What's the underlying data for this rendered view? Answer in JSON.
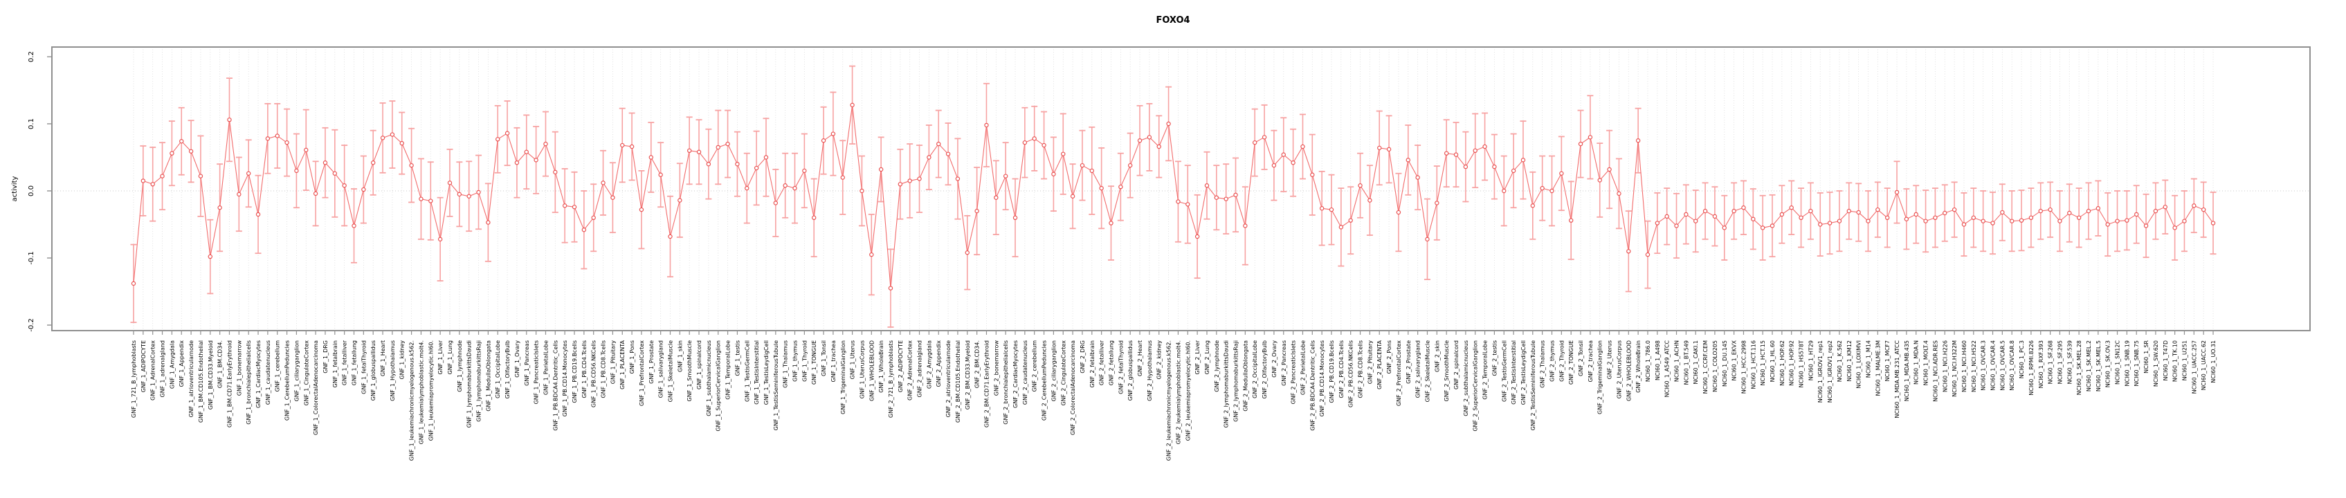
{
  "chart_data": {
    "type": "line",
    "title": "FOXO4",
    "xlabel": "",
    "ylabel": "activity",
    "ylim": [
      -0.2,
      0.2
    ],
    "yticks": [
      0.2,
      0.1,
      0.0,
      -0.1,
      -0.2
    ],
    "ytick_labels": [
      "0.2",
      "0.1",
      "0.0",
      "-0.1",
      "-0.2"
    ],
    "grid": "vertical dotted gridline at every category; dotted horizontal line at 0.0",
    "legend": "none",
    "marker": "open-circle",
    "error_bars": true,
    "categories": [
      "GNF_1_721_B_lymphoblasts",
      "GNF_1_ADIPOCYTE",
      "GNF_1_AdrenalCortex",
      "GNF_1_adrenalgland",
      "GNF_1_Amygdala",
      "GNF_1_Appendix",
      "GNF_1_atrioventricularnode",
      "GNF_1_BM.CD105.Endothelial",
      "GNF_1_BM.CD33.Myeloid",
      "GNF_1_BM.CD34.",
      "GNF_1_BM.CD71.EarlyErythroid",
      "GNF_1_bonemarrow",
      "GNF_1_bronchialepithelialcells",
      "GNF_1_CardiacMyocytes",
      "GNF_1_caudatenucleus",
      "GNF_1_cerebellum",
      "GNF_1_CerebellumPeduncles",
      "GNF_1_ciliaryganglion",
      "GNF_1_CingulateCortex",
      "GNF_1_ColorectalAdenocarcinoma",
      "GNF_1_DRG",
      "GNF_1_fetalbrain",
      "GNF_1_fetalliver",
      "GNF_1_fetallung",
      "GNF_1_fetalThyroid",
      "GNF_1_globuspallidus",
      "GNF_1_Heart",
      "GNF_1_Hypothalamus",
      "GNF_1_kidney",
      "GNF_1_leukemiachronicmyelogenous.k562.",
      "GNF_1_leukemialymphoblastic.molt4.",
      "GNF_1_leukemiapromyelocytic.hl60.",
      "GNF_1_Liver",
      "GNF_1_Lung",
      "GNF_1_lymphnode",
      "GNF_1_lymphomaburkittsDaudi",
      "GNF_1_lymphomaburkittsRaji",
      "GNF_1_MedullaOblongata",
      "GNF_1_OccipitalLobe",
      "GNF_1_OlfactoryBulb",
      "GNF_1_Ovary",
      "GNF_1_Pancreas",
      "GNF_1_PancreaticIslets",
      "GNF_1_ParietalLobe",
      "GNF_1_PB.BDCA4.Dentritic_Cells",
      "GNF_1_PB.CD14.Monocytes",
      "GNF_1_PB.CD19.Bcells",
      "GNF_1_PB.CD4.Tcells",
      "GNF_1_PB.CD56.NKCells",
      "GNF_1_PB.CD8.Tcells",
      "GNF_1_Pituitary",
      "GNF_1_PLACENTA",
      "GNF_1_Pons",
      "GNF_1_PrefrontalCortex",
      "GNF_1_Prostate",
      "GNF_1_salivarygland",
      "GNF_1_SkeletalMuscle",
      "GNF_1_skin",
      "GNF_1_SmoothMuscle",
      "GNF_1_spinalcord",
      "GNF_1_subthalamicnucleus",
      "GNF_1_SuperiorCervicalGanglion",
      "GNF_1_TemporalLobe",
      "GNF_1_testis",
      "GNF_1_TestisGermCell",
      "GNF_1_TestisInterstitial",
      "GNF_1_TestisLeydigCell",
      "GNF_1_TestisSeminiferousTubule",
      "GNF_1_Thalamus",
      "GNF_1_thymus",
      "GNF_1_Thyroid",
      "GNF_1_TONGUE",
      "GNF_1_Tonsil",
      "GNF_1_trachea",
      "GNF_1_TrigeminalGanglion",
      "GNF_1_Uterus",
      "GNF_1_UterusCorpus",
      "GNF_1_WHOLEBLOOD",
      "GNF_1_WholeBrain",
      "GNF_2_721_B_lymphoblasts",
      "GNF_2_ADIPOCYTE",
      "GNF_2_AdrenalCortex",
      "GNF_2_adrenalgland",
      "GNF_2_Amygdala",
      "GNF_2_Appendix",
      "GNF_2_atrioventricularnode",
      "GNF_2_BM.CD105.Endothelial",
      "GNF_2_BM.CD33.Myeloid",
      "GNF_2_BM.CD34.",
      "GNF_2_BM.CD71.EarlyErythroid",
      "GNF_2_bonemarrow",
      "GNF_2_bronchialepithelialcells",
      "GNF_2_CardiacMyocytes",
      "GNF_2_caudatenucleus",
      "GNF_2_cerebellum",
      "GNF_2_CerebellumPeduncles",
      "GNF_2_ciliaryganglion",
      "GNF_2_CingulateCortex",
      "GNF_2_ColorectalAdenocarcinoma",
      "GNF_2_DRG",
      "GNF_2_fetalbrain",
      "GNF_2_fetalliver",
      "GNF_2_fetallung",
      "GNF_2_fetalThyroid",
      "GNF_2_globuspallidus",
      "GNF_2_Heart",
      "GNF_2_Hypothalamus",
      "GNF_2_kidney",
      "GNF_2_leukemiachronicmyelogenous.k562.",
      "GNF_2_leukemialymphoblastic.molt4.",
      "GNF_2_leukemiapromyelocytic.hl60.",
      "GNF_2_Liver",
      "GNF_2_Lung",
      "GNF_2_lymphnode",
      "GNF_2_lymphomaburkittsDaudi",
      "GNF_2_lymphomaburkittsRaji",
      "GNF_2_MedullaOblongata",
      "GNF_2_OccipitalLobe",
      "GNF_2_OlfactoryBulb",
      "GNF_2_Ovary",
      "GNF_2_Pancreas",
      "GNF_2_PancreaticIslets",
      "GNF_2_ParietalLobe",
      "GNF_2_PB.BDCA4.Dentritic_Cells",
      "GNF_2_PB.CD14.Monocytes",
      "GNF_2_PB.CD19.Bcells",
      "GNF_2_PB.CD4.Tcells",
      "GNF_2_PB.CD56.NKCells",
      "GNF_2_PB.CD8.Tcells",
      "GNF_2_Pituitary",
      "GNF_2_PLACENTA",
      "GNF_2_Pons",
      "GNF_2_PrefrontalCortex",
      "GNF_2_Prostate",
      "GNF_2_salivarygland",
      "GNF_2_SkeletalMuscle",
      "GNF_2_skin",
      "GNF_2_SmoothMuscle",
      "GNF_2_spinalcord",
      "GNF_2_subthalamicnucleus",
      "GNF_2_SuperiorCervicalGanglion",
      "GNF_2_TemporalLobe",
      "GNF_2_testis",
      "GNF_2_TestisGermCell",
      "GNF_2_TestisInterstitial",
      "GNF_2_TestisLeydigCell",
      "GNF_2_TestisSeminiferousTubule",
      "GNF_2_Thalamus",
      "GNF_2_thymus",
      "GNF_2_Thyroid",
      "GNF_2_TONGUE",
      "GNF_2_Tonsil",
      "GNF_2_trachea",
      "GNF_2_TrigeminalGanglion",
      "GNF_2_Uterus",
      "GNF_2_UterusCorpus",
      "GNF_2_WHOLEBLOOD",
      "GNF_2_WholeBrain",
      "NCI60_1_786.0",
      "NCI60_1_A498",
      "NCI60_1_A549_ATCC",
      "NCI60_1_ACHN",
      "NCI60_1_BT.549",
      "NCI60_1_CAKI.1",
      "NCI60_1_CCRF.CEM",
      "NCI60_1_COLO205",
      "NCI60_1_DU.145",
      "NCI60_1_EKVX",
      "NCI60_1_HCC.2998",
      "NCI60_1_HCT.116",
      "NCI60_1_HCT.15",
      "NCI60_1_HL.60",
      "NCI60_1_HOP.62",
      "NCI60_1_HOP.92",
      "NCI60_1_HS578T",
      "NCI60_1_HT29",
      "NCI60_1_IGROV1_rep1",
      "NCI60_1_IGROV1_rep2",
      "NCI60_1_K.562",
      "NCI60_1_KM12",
      "NCI60_1_LOXIMVI",
      "NCI60_1_M14",
      "NCI60_1_MALME.3M",
      "NCI60_1_MCF7",
      "NCI60_1_MDA.MB.231_ATCC",
      "NCI60_1_MDA.MB.435",
      "NCI60_1_MDA.N",
      "NCI60_1_MOLT.4",
      "NCI60_1_NCI.ADR.RES",
      "NCI60_1_NCI.H226",
      "NCI60_1_NCI.H322M",
      "NCI60_1_NCI.H460",
      "NCI60_1_NCI.H522",
      "NCI60_1_OVCAR.3",
      "NCI60_1_OVCAR.4",
      "NCI60_1_OVCAR.5",
      "NCI60_1_OVCAR.8",
      "NCI60_1_PC.3",
      "NCI60_1_RPMI.8226",
      "NCI60_1_RXF.393",
      "NCI60_1_SF.268",
      "NCI60_1_SF.295",
      "NCI60_1_SF.539",
      "NCI60_1_SK.MEL.28",
      "NCI60_1_SK.MEL.2",
      "NCI60_1_SK.MEL.5",
      "NCI60_1_SK.OV.3",
      "NCI60_1_SN12C",
      "NCI60_1_SNB.19",
      "NCI60_1_SNB.75",
      "NCI60_1_SR",
      "NCI60_1_SW.620",
      "NCI60_1_T47D",
      "NCI60_1_TK.10",
      "NCI60_1_U251",
      "NCI60_1_UACC.257",
      "NCI60_1_UACC.62",
      "NCI60_1_UO.31"
    ],
    "values": [
      -0.138,
      0.015,
      0.01,
      0.022,
      0.056,
      0.074,
      0.059,
      0.022,
      -0.098,
      -0.025,
      0.106,
      -0.005,
      0.026,
      -0.035,
      0.078,
      0.082,
      0.072,
      0.03,
      0.061,
      -0.004,
      0.042,
      0.026,
      0.008,
      -0.052,
      0.002,
      0.042,
      0.079,
      0.084,
      0.071,
      0.038,
      -0.012,
      -0.015,
      -0.072,
      0.012,
      -0.005,
      -0.008,
      -0.002,
      -0.047,
      0.077,
      0.086,
      0.042,
      0.058,
      0.046,
      0.07,
      0.028,
      -0.022,
      -0.024,
      -0.058,
      -0.04,
      0.012,
      -0.01,
      0.068,
      0.066,
      -0.028,
      0.05,
      0.024,
      -0.068,
      -0.014,
      0.06,
      0.058,
      0.04,
      0.065,
      0.07,
      0.04,
      0.004,
      0.034,
      0.05,
      -0.018,
      0.008,
      0.004,
      0.03,
      -0.04,
      0.075,
      0.085,
      0.02,
      0.128,
      0.0,
      -0.095,
      0.032,
      -0.145,
      0.01,
      0.015,
      0.018,
      0.05,
      0.07,
      0.055,
      0.018,
      -0.092,
      -0.03,
      0.098,
      -0.01,
      0.022,
      -0.04,
      0.072,
      0.078,
      0.068,
      0.025,
      0.055,
      -0.008,
      0.038,
      0.03,
      0.004,
      -0.048,
      0.006,
      0.038,
      0.075,
      0.08,
      0.066,
      0.1,
      -0.016,
      -0.02,
      -0.068,
      0.008,
      -0.01,
      -0.012,
      -0.006,
      -0.052,
      0.072,
      0.08,
      0.038,
      0.054,
      0.042,
      0.066,
      0.024,
      -0.026,
      -0.028,
      -0.054,
      -0.044,
      0.008,
      -0.014,
      0.064,
      0.062,
      -0.032,
      0.046,
      0.02,
      -0.072,
      -0.018,
      0.056,
      0.054,
      0.036,
      0.06,
      0.066,
      0.036,
      0.0,
      0.03,
      0.046,
      -0.022,
      0.004,
      0.0,
      0.026,
      -0.044,
      0.07,
      0.08,
      0.016,
      0.032,
      -0.004,
      -0.09,
      0.075,
      -0.095,
      -0.048,
      -0.038,
      -0.052,
      -0.035,
      -0.045,
      -0.03,
      -0.038,
      -0.055,
      -0.03,
      -0.025,
      -0.042,
      -0.055,
      -0.052,
      -0.035,
      -0.025,
      -0.04,
      -0.03,
      -0.05,
      -0.048,
      -0.045,
      -0.03,
      -0.032,
      -0.045,
      -0.028,
      -0.04,
      -0.002,
      -0.042,
      -0.035,
      -0.045,
      -0.04,
      -0.033,
      -0.028,
      -0.05,
      -0.04,
      -0.045,
      -0.048,
      -0.032,
      -0.045,
      -0.044,
      -0.04,
      -0.03,
      -0.028,
      -0.045,
      -0.033,
      -0.04,
      -0.03,
      -0.026,
      -0.05,
      -0.045,
      -0.044,
      -0.035,
      -0.052,
      -0.03,
      -0.024,
      -0.055,
      -0.045,
      -0.022,
      -0.028,
      -0.048
    ],
    "errors": [
      0.058,
      0.052,
      0.055,
      0.05,
      0.048,
      0.05,
      0.046,
      0.06,
      0.055,
      0.065,
      0.062,
      0.055,
      0.05,
      0.058,
      0.052,
      0.048,
      0.05,
      0.055,
      0.06,
      0.048,
      0.052,
      0.065,
      0.06,
      0.055,
      0.05,
      0.048,
      0.052,
      0.05,
      0.046,
      0.055,
      0.06,
      0.058,
      0.062,
      0.05,
      0.048,
      0.052,
      0.055,
      0.058,
      0.05,
      0.048,
      0.052,
      0.055,
      0.05,
      0.048,
      0.06,
      0.055,
      0.052,
      0.058,
      0.05,
      0.048,
      0.052,
      0.055,
      0.05,
      0.058,
      0.052,
      0.048,
      0.06,
      0.055,
      0.05,
      0.048,
      0.052,
      0.055,
      0.05,
      0.048,
      0.052,
      0.055,
      0.058,
      0.05,
      0.048,
      0.052,
      0.055,
      0.058,
      0.05,
      0.062,
      0.055,
      0.058,
      0.052,
      0.06,
      0.048,
      0.058,
      0.052,
      0.055,
      0.05,
      0.048,
      0.05,
      0.046,
      0.06,
      0.055,
      0.065,
      0.062,
      0.055,
      0.05,
      0.058,
      0.052,
      0.048,
      0.05,
      0.055,
      0.06,
      0.048,
      0.052,
      0.065,
      0.06,
      0.055,
      0.05,
      0.048,
      0.052,
      0.05,
      0.046,
      0.055,
      0.06,
      0.058,
      0.062,
      0.05,
      0.048,
      0.052,
      0.055,
      0.058,
      0.05,
      0.048,
      0.052,
      0.055,
      0.05,
      0.048,
      0.06,
      0.055,
      0.052,
      0.058,
      0.05,
      0.048,
      0.052,
      0.055,
      0.05,
      0.058,
      0.052,
      0.048,
      0.06,
      0.055,
      0.05,
      0.048,
      0.052,
      0.055,
      0.05,
      0.048,
      0.052,
      0.055,
      0.058,
      0.05,
      0.048,
      0.052,
      0.055,
      0.058,
      0.05,
      0.062,
      0.055,
      0.058,
      0.052,
      0.06,
      0.048,
      0.05,
      0.045,
      0.042,
      0.048,
      0.044,
      0.046,
      0.042,
      0.044,
      0.048,
      0.042,
      0.04,
      0.045,
      0.048,
      0.046,
      0.043,
      0.04,
      0.044,
      0.042,
      0.047,
      0.046,
      0.045,
      0.042,
      0.043,
      0.045,
      0.041,
      0.044,
      0.046,
      0.045,
      0.043,
      0.046,
      0.044,
      0.042,
      0.041,
      0.047,
      0.044,
      0.045,
      0.046,
      0.042,
      0.045,
      0.045,
      0.044,
      0.042,
      0.041,
      0.045,
      0.043,
      0.044,
      0.042,
      0.041,
      0.047,
      0.045,
      0.044,
      0.043,
      0.047,
      0.042,
      0.04,
      0.048,
      0.045,
      0.04,
      0.041,
      0.046
    ]
  },
  "colors": {
    "frame": "#8f8f8f",
    "grid": "#d9d9d9",
    "zero_line": "#c9c9c9",
    "error_bar": "#f7a2a2",
    "series_line": "#f26b6b",
    "marker_stroke": "#e94f4f",
    "marker_fill": "#ffffff",
    "text": "#000000"
  }
}
